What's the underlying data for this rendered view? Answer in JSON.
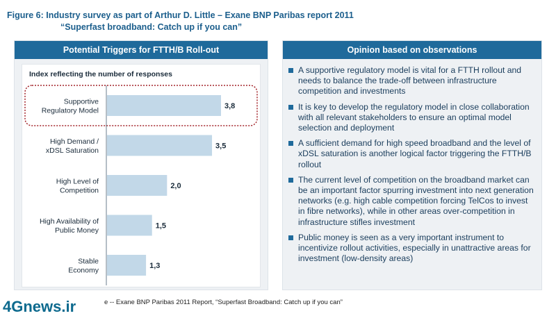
{
  "figure": {
    "title_line1": "Figure 6: Industry survey as part of Arthur D. Little – Exane BNP Paribas report 2011",
    "title_line2": "“Superfast broadband: Catch up if you can”"
  },
  "left_panel": {
    "header": "Potential Triggers for FTTH/B Roll-out"
  },
  "right_panel": {
    "header": "Opinion based on observations",
    "bullets": [
      "A supportive regulatory model is vital for a FTTH rollout and needs to balance the trade-off between infrastructure competition and investments",
      "It is key to develop the regulatory model in close collaboration with all relevant stakeholders to ensure an optimal model selection and deployment",
      "A sufficient demand for high speed broadband and the level of xDSL saturation is another logical factor triggering the FTTH/B rollout",
      "The current level of competition on the broadband market can be an important factor spurring investment into next generation networks (e.g. high cable competition forcing TelCos to invest in fibre networks), while in other areas over-competition in infrastructure stifles investment",
      "Public money is seen as a very important instrument to incentivize rollout activities, especially in unattractive areas for investment (low-density areas)"
    ]
  },
  "chart_data": {
    "type": "bar",
    "orientation": "horizontal",
    "title": "Index reflecting the number of responses",
    "categories": [
      [
        "Supportive",
        "Regulatory Model"
      ],
      [
        "High Demand /",
        "xDSL Saturation"
      ],
      [
        "High Level of",
        "Competition"
      ],
      [
        "High Availability of",
        "Public Money"
      ],
      [
        "Stable",
        "Economy"
      ]
    ],
    "values": [
      3.8,
      3.5,
      2.0,
      1.5,
      1.3
    ],
    "value_labels": [
      "3,8",
      "3,5",
      "2,0",
      "1,5",
      "1,3"
    ],
    "highlighted_index": 0,
    "grid": false,
    "colors": {
      "bar": "#c2d8e8",
      "highlight_border": "#a3252b",
      "axis": "#6b7d8c"
    }
  },
  "source": "e --  Exane BNP Paribas 2011 Report, “Superfast Broadband: Catch up if you can”",
  "watermark": "4Gnews.ir"
}
